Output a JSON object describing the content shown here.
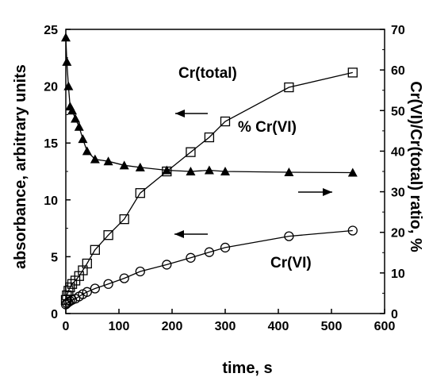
{
  "chart_data": {
    "type": "line",
    "xlabel": "time,  s",
    "ylabel": "absorbance, arbitrary units",
    "y2label": "Cr(VI)/Cr(total) ratio,  %",
    "xlim": [
      0,
      600
    ],
    "ylim": [
      0,
      25
    ],
    "y2lim": [
      0,
      70
    ],
    "xticks": [
      "0",
      "100",
      "200",
      "300",
      "400",
      "500",
      "600"
    ],
    "yticks": [
      "0",
      "5",
      "10",
      "15",
      "20",
      "25"
    ],
    "y2ticks": [
      "0",
      "10",
      "20",
      "30",
      "40",
      "50",
      "60",
      "70"
    ],
    "grid": false,
    "legend": "none",
    "annotations": {
      "total": "Cr(total)",
      "ratio": "% Cr(VI)",
      "crvi": "Cr(VI)"
    },
    "series": [
      {
        "marker": "square",
        "axis": "left",
        "x": [
          0,
          2,
          5,
          8,
          12,
          18,
          25,
          32,
          40,
          55,
          80,
          110,
          140,
          190,
          235,
          270,
          300,
          420,
          540
        ],
        "y": [
          1.2,
          1.6,
          2.0,
          2.3,
          2.6,
          2.9,
          3.3,
          3.8,
          4.4,
          5.6,
          6.9,
          8.3,
          10.6,
          12.5,
          14.2,
          15.5,
          16.9,
          19.9,
          21.2
        ]
      },
      {
        "marker": "circle",
        "axis": "left",
        "x": [
          0,
          2,
          5,
          8,
          12,
          18,
          25,
          32,
          40,
          55,
          80,
          110,
          140,
          190,
          235,
          270,
          300,
          420,
          540
        ],
        "y": [
          0.8,
          0.9,
          1.0,
          1.1,
          1.2,
          1.3,
          1.5,
          1.7,
          1.9,
          2.2,
          2.6,
          3.1,
          3.7,
          4.3,
          4.9,
          5.4,
          5.8,
          6.8,
          7.3
        ]
      },
      {
        "marker": "triangle",
        "axis": "right",
        "x": [
          0,
          2,
          5,
          8,
          12,
          18,
          25,
          32,
          40,
          55,
          80,
          110,
          140,
          190,
          235,
          270,
          300,
          420,
          540
        ],
        "y": [
          68,
          62,
          56,
          51,
          50,
          48,
          46,
          43,
          40,
          38,
          37.5,
          36.5,
          36,
          35.3,
          35,
          35.3,
          35,
          34.8,
          34.7
        ]
      }
    ]
  }
}
